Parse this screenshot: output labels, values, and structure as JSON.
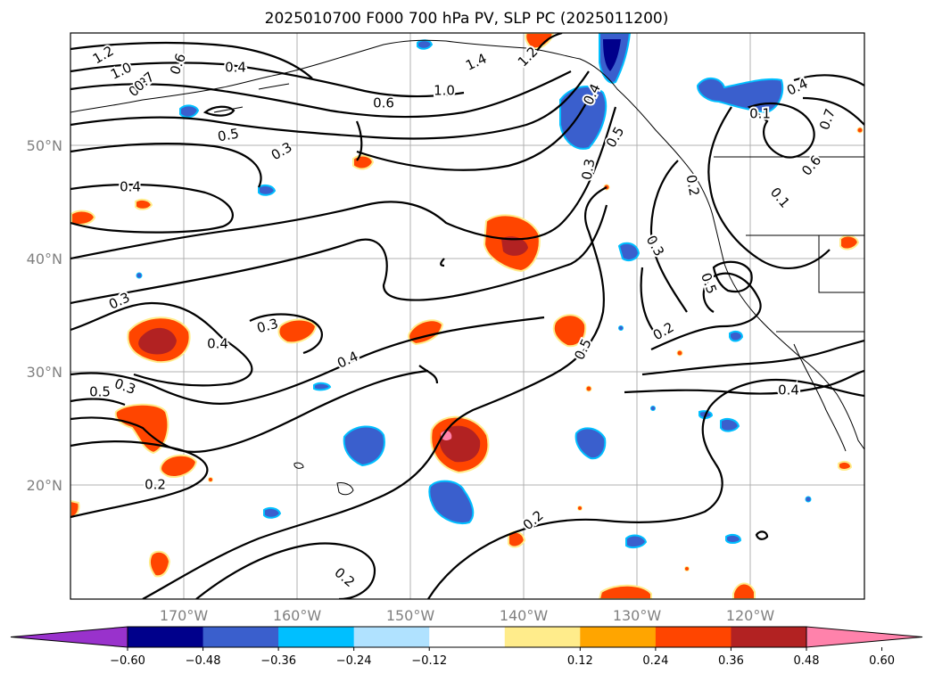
{
  "title": "2025010700 F000 700 hPa PV, SLP PC (2025011200)",
  "axes": {
    "lon_labels": [
      "170°W",
      "160°W",
      "150°W",
      "140°W",
      "130°W",
      "120°W"
    ],
    "lat_labels": [
      "50°N",
      "40°N",
      "30°N",
      "20°N"
    ]
  },
  "colorbar": {
    "tick_labels": [
      "−0.60",
      "−0.48",
      "−0.36",
      "−0.24",
      "−0.12",
      "0.12",
      "0.24",
      "0.36",
      "0.48",
      "0.60"
    ],
    "bin_colors": [
      "#9932CC",
      "#00008B",
      "#3A5FCD",
      "#00BFFF",
      "#B0E2FF",
      "#FFFFFF",
      "#FFEC8B",
      "#FFA500",
      "#FF4500",
      "#B22222",
      "#FF82AB"
    ]
  },
  "contour_labels": [
    "1.2",
    "1.0",
    "0.8",
    "0.7",
    "0.6",
    "0.4",
    "0.5",
    "0.3",
    "0.4",
    "1.4",
    "1.2",
    "1.0",
    "0.6",
    "0.3",
    "0.4",
    "0.3",
    "0.4",
    "0.5",
    "0.3",
    "0.2",
    "0.2",
    "0.2",
    "0.3",
    "0.5",
    "0.4",
    "0.5",
    "0.2",
    "0.3",
    "0.5",
    "0.2",
    "0.4",
    "0.4",
    "0.1",
    "0.7",
    "0.6",
    "0.1"
  ]
}
